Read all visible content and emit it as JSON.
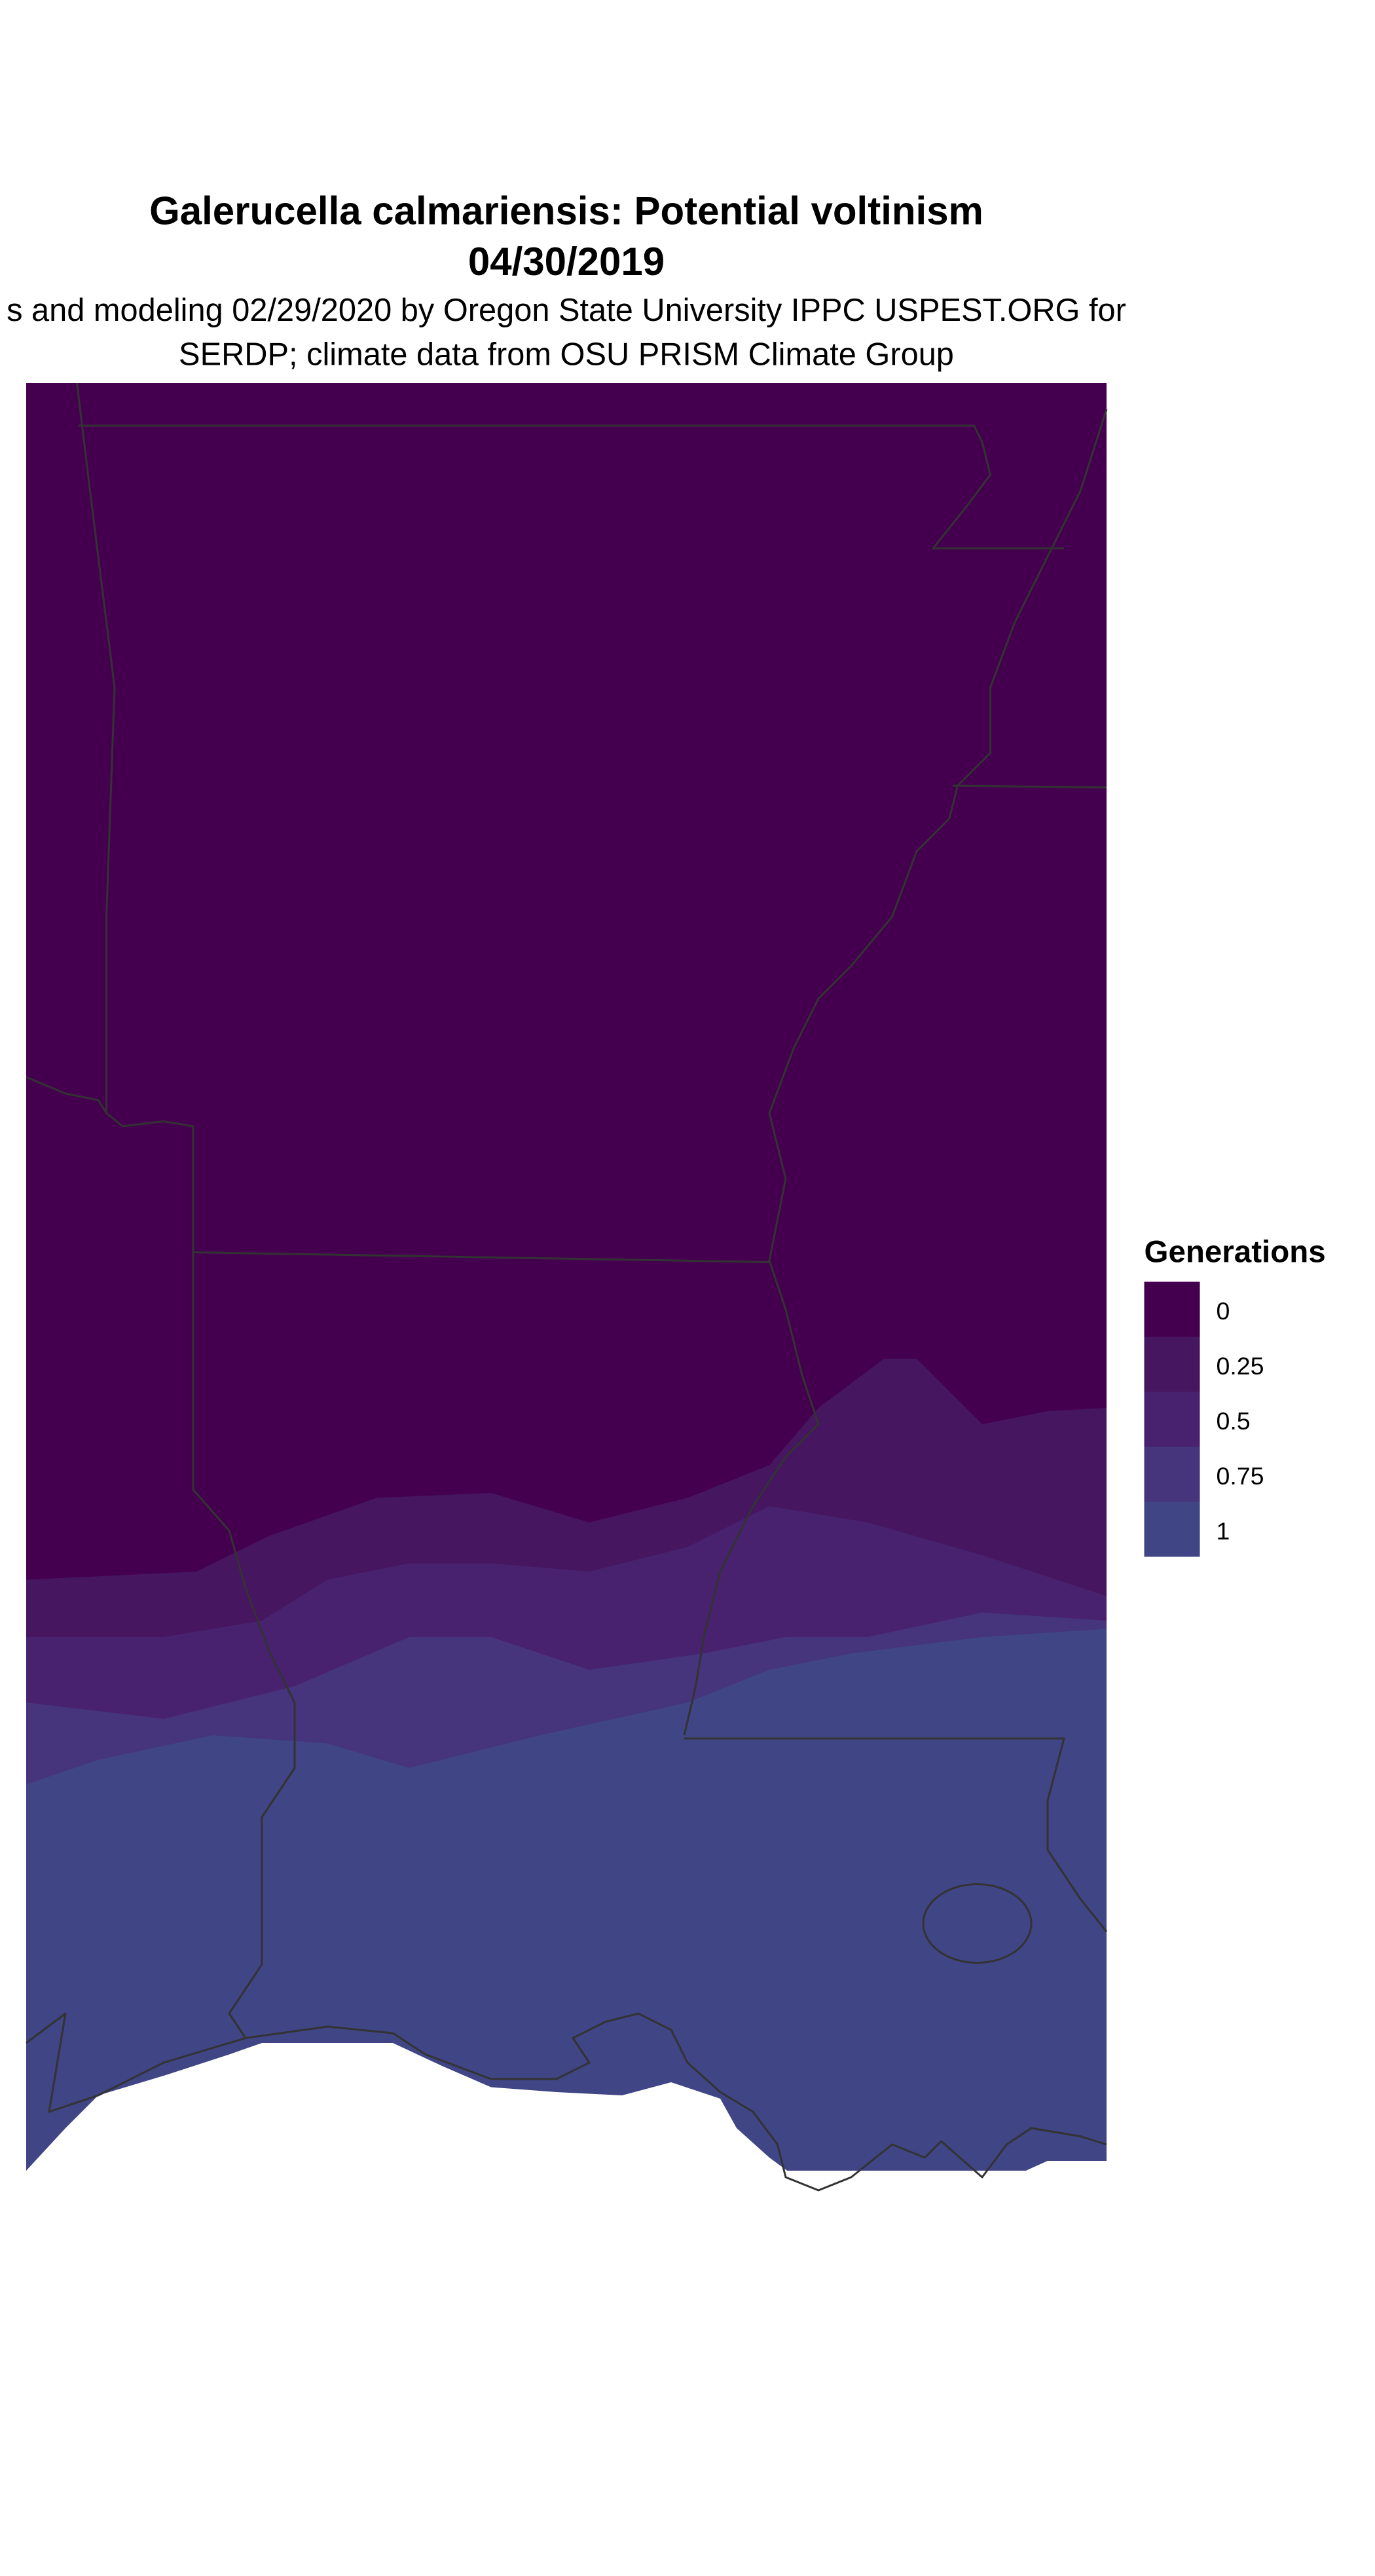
{
  "title": "Galerucella calmariensis: Potential voltinism",
  "date": "04/30/2019",
  "subtitle_line1": "s and modeling 02/29/2020 by Oregon State University IPPC USPEST.ORG for",
  "subtitle_line2": "SERDP; climate data from OSU PRISM Climate Group",
  "legend": {
    "title": "Generations",
    "items": [
      {
        "label": "0",
        "color": "#44004f"
      },
      {
        "label": "0.25",
        "color": "#461660"
      },
      {
        "label": "0.5",
        "color": "#48226f"
      },
      {
        "label": "0.75",
        "color": "#46347c"
      },
      {
        "label": "1",
        "color": "#3f4585"
      }
    ]
  },
  "border_color": "#333333"
}
